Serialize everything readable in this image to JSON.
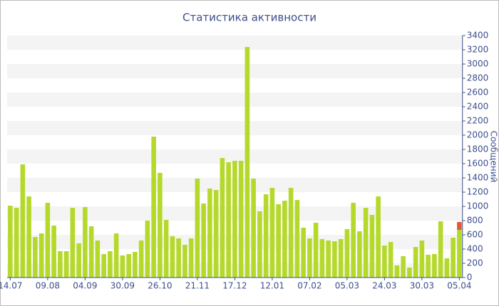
{
  "chart_data": {
    "type": "bar",
    "title": "Статистика активности",
    "y_label": "Сообщений",
    "categories": [
      "14.07",
      null,
      null,
      null,
      null,
      null,
      "09.08",
      null,
      null,
      null,
      null,
      null,
      "04.09",
      null,
      null,
      null,
      null,
      null,
      "30.09",
      null,
      null,
      null,
      null,
      null,
      "26.10",
      null,
      null,
      null,
      null,
      null,
      "21.11",
      null,
      null,
      null,
      null,
      null,
      "17.12",
      null,
      null,
      null,
      null,
      null,
      "12.01",
      null,
      null,
      null,
      null,
      null,
      "07.02",
      null,
      null,
      null,
      null,
      null,
      "05.03",
      null,
      null,
      null,
      null,
      null,
      "24.03",
      null,
      null,
      null,
      null,
      null,
      "30.03",
      null,
      null,
      null,
      null,
      null,
      "05.04"
    ],
    "series": [
      {
        "color": "#b5d92b",
        "values": [
          1010,
          980,
          1590,
          1140,
          570,
          620,
          1050,
          730,
          370,
          370,
          980,
          480,
          990,
          720,
          520,
          330,
          370,
          620,
          310,
          330,
          360,
          520,
          800,
          1980,
          1470,
          810,
          580,
          550,
          460,
          550,
          1390,
          1040,
          1250,
          1230,
          1680,
          1620,
          1640,
          1640,
          3240,
          1390,
          930,
          1170,
          1260,
          1030,
          1080,
          1260,
          1090,
          700,
          550,
          770,
          540,
          520,
          510,
          540,
          680,
          1050,
          650,
          980,
          880,
          1140,
          450,
          500,
          170,
          300,
          140,
          430,
          520,
          320,
          330,
          790,
          270,
          560,
          670
        ]
      },
      {
        "color": "#e8572f",
        "values": [
          null,
          null,
          null,
          null,
          null,
          null,
          null,
          null,
          null,
          null,
          null,
          null,
          null,
          null,
          null,
          null,
          null,
          null,
          null,
          null,
          null,
          null,
          null,
          null,
          null,
          null,
          null,
          null,
          null,
          null,
          null,
          null,
          null,
          null,
          null,
          null,
          null,
          null,
          null,
          null,
          null,
          null,
          null,
          null,
          null,
          null,
          null,
          null,
          null,
          null,
          null,
          null,
          null,
          null,
          null,
          null,
          null,
          null,
          null,
          null,
          null,
          null,
          null,
          null,
          null,
          null,
          null,
          null,
          null,
          null,
          null,
          null,
          110
        ]
      }
    ],
    "ylim": [
      0,
      3400
    ],
    "yticks": [
      0,
      200,
      400,
      600,
      800,
      1000,
      1200,
      1400,
      1600,
      1800,
      2000,
      2200,
      2400,
      2600,
      2800,
      3000,
      3200,
      3400
    ],
    "grid": "bands"
  }
}
